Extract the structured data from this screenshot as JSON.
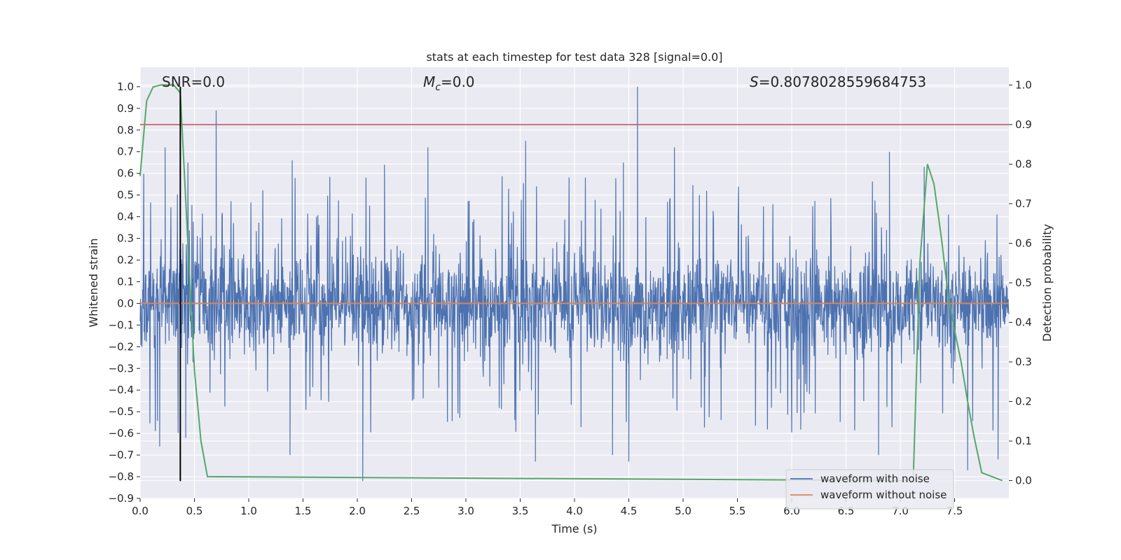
{
  "chart_data": {
    "type": "line",
    "title": "stats at each timestep for test data 328 [signal=0.0]",
    "xlabel": "Time (s)",
    "ylabel_left": "Whitened strain",
    "ylabel_right": "Detection probability",
    "xlim": [
      0.0,
      8.0
    ],
    "ylim_left": [
      -0.9,
      1.09
    ],
    "ylim_right": [
      -0.045,
      1.045
    ],
    "x_ticks": [
      0.0,
      0.5,
      1.0,
      1.5,
      2.0,
      2.5,
      3.0,
      3.5,
      4.0,
      4.5,
      5.0,
      5.5,
      6.0,
      6.5,
      7.0,
      7.5
    ],
    "x_tick_labels": [
      "0.0",
      "0.5",
      "1.0",
      "1.5",
      "2.0",
      "2.5",
      "3.0",
      "3.5",
      "4.0",
      "4.5",
      "5.0",
      "5.5",
      "6.0",
      "6.5",
      "7.0",
      "7.5"
    ],
    "y_ticks_left": [
      -0.9,
      -0.8,
      -0.7,
      -0.6,
      -0.5,
      -0.4,
      -0.3,
      -0.2,
      -0.1,
      0.0,
      0.1,
      0.2,
      0.3,
      0.4,
      0.5,
      0.6,
      0.7,
      0.8,
      0.9,
      1.0
    ],
    "y_tick_labels_left": [
      "−0.9",
      "−0.8",
      "−0.7",
      "−0.6",
      "−0.5",
      "−0.4",
      "−0.3",
      "−0.2",
      "−0.1",
      "0.0",
      "0.1",
      "0.2",
      "0.3",
      "0.4",
      "0.5",
      "0.6",
      "0.7",
      "0.8",
      "0.9",
      "1.0"
    ],
    "y_ticks_right": [
      0.0,
      0.1,
      0.2,
      0.3,
      0.4,
      0.5,
      0.6,
      0.7,
      0.8,
      0.9,
      1.0
    ],
    "y_tick_labels_right": [
      "0.0",
      "0.1",
      "0.2",
      "0.3",
      "0.4",
      "0.5",
      "0.6",
      "0.7",
      "0.8",
      "0.9",
      "1.0"
    ],
    "grid": true,
    "legend_position": "bottom-right",
    "annotations": {
      "snr": "SNR=0.0",
      "mc_symbol": "M",
      "mc_sub": "c",
      "mc_value": "=0.0",
      "s_symbol": "S",
      "s_value": "=0.8078028559684753"
    },
    "series": [
      {
        "name": "waveform with noise",
        "color": "#4c72b0",
        "axis": "left",
        "envelope_peaks": [
          {
            "x": 0.23,
            "y": 0.72
          },
          {
            "x": 0.44,
            "y": 0.65
          },
          {
            "x": 0.7,
            "y": 0.89
          },
          {
            "x": 1.4,
            "y": 0.66
          },
          {
            "x": 2.25,
            "y": 0.64
          },
          {
            "x": 2.65,
            "y": 0.72
          },
          {
            "x": 3.55,
            "y": 0.75
          },
          {
            "x": 4.45,
            "y": 0.65
          },
          {
            "x": 4.58,
            "y": 1.0
          },
          {
            "x": 4.92,
            "y": 0.72
          },
          {
            "x": 6.9,
            "y": 0.7
          },
          {
            "x": 7.22,
            "y": 0.63
          },
          {
            "x": 0.18,
            "y": -0.66
          },
          {
            "x": 0.42,
            "y": -0.62
          },
          {
            "x": 1.38,
            "y": -0.7
          },
          {
            "x": 2.05,
            "y": -0.82
          },
          {
            "x": 3.64,
            "y": -0.73
          },
          {
            "x": 4.35,
            "y": -0.7
          },
          {
            "x": 4.5,
            "y": -0.73
          },
          {
            "x": 6.8,
            "y": -0.7
          },
          {
            "x": 7.62,
            "y": -0.77
          },
          {
            "x": 7.9,
            "y": -0.72
          }
        ]
      },
      {
        "name": "waveform without noise",
        "color": "#dd8452",
        "axis": "left",
        "x": [
          0.0,
          8.0
        ],
        "y": [
          0.0,
          0.0
        ]
      },
      {
        "name": "detection probability",
        "color": "#55a868",
        "axis": "right",
        "x": [
          0.0,
          0.06,
          0.12,
          0.19,
          0.25,
          0.31,
          0.37,
          0.44,
          0.5,
          0.56,
          0.62,
          7.05,
          7.12,
          7.18,
          7.25,
          7.31,
          7.38,
          7.44,
          7.5,
          7.56,
          7.62,
          7.68,
          7.75,
          7.94
        ],
        "y": [
          0.77,
          0.96,
          0.995,
          1.0,
          1.0,
          1.0,
          0.98,
          0.6,
          0.28,
          0.1,
          0.01,
          0.0,
          0.01,
          0.55,
          0.8,
          0.75,
          0.61,
          0.47,
          0.38,
          0.3,
          0.2,
          0.11,
          0.02,
          0.0
        ]
      }
    ],
    "threshold_line": {
      "axis": "right",
      "y": 0.9,
      "color": "#c44e52"
    },
    "marker_line": {
      "x": 0.37,
      "y_from": -0.82,
      "y_to": 1.0,
      "color": "#000000"
    }
  }
}
